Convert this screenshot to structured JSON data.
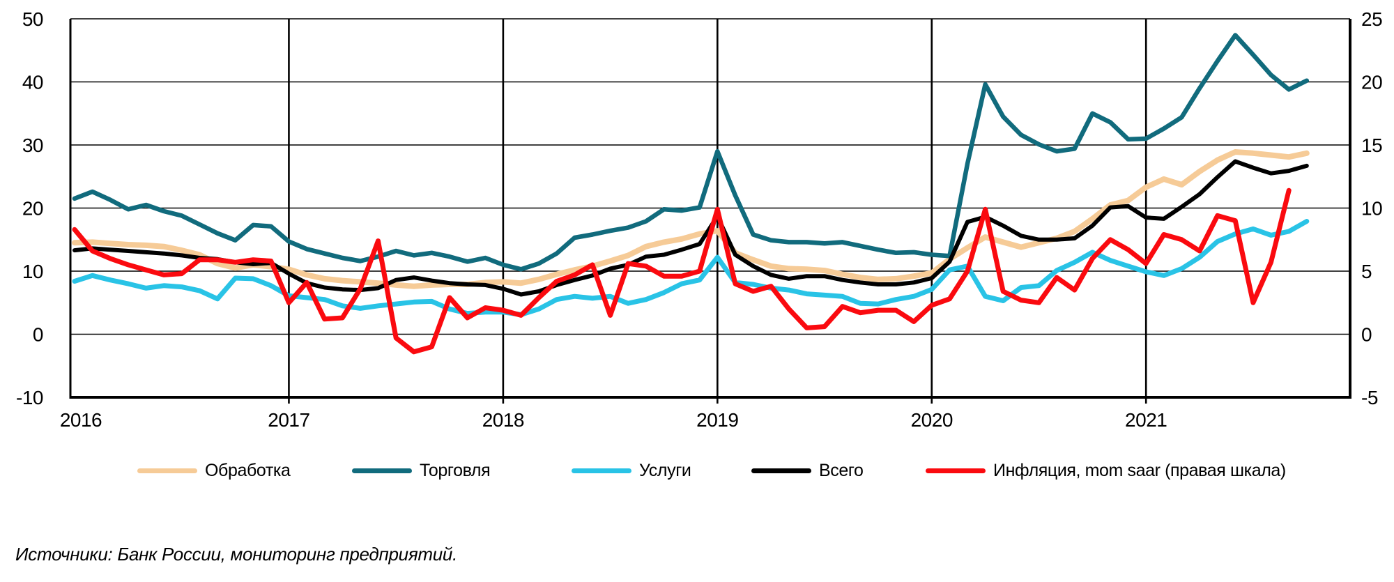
{
  "source_note": "Источники: Банк России, мониторинг предприятий.",
  "chart_data": {
    "type": "line",
    "title": "",
    "x_unit": "month",
    "x_start": "2016-01",
    "x_end_expectations": "2021-10",
    "x_end_inflation": "2021-09",
    "grid": "on",
    "legend_position": "bottom",
    "x_tick_labels": [
      "2016",
      "2017",
      "2018",
      "2019",
      "2020",
      "2021"
    ],
    "left_axis": {
      "min": -10,
      "max": 50,
      "tick_labels": [
        "50",
        "40",
        "30",
        "20",
        "10",
        "0",
        "-10"
      ],
      "tick_values": [
        50,
        40,
        30,
        20,
        10,
        0,
        -10
      ]
    },
    "right_axis": {
      "min": -5,
      "max": 25,
      "tick_labels": [
        "25",
        "20",
        "15",
        "10",
        "5",
        "0",
        "-5"
      ],
      "tick_values": [
        25,
        20,
        15,
        10,
        5,
        0,
        -5
      ]
    },
    "series": [
      {
        "key": "manufacturing",
        "name": "Обработка",
        "color": "#F6CB97",
        "axis": "left",
        "values": [
          14.5,
          14.6,
          14.4,
          14.2,
          14.1,
          13.9,
          13.3,
          12.6,
          11.2,
          10.5,
          11.0,
          10.7,
          10.3,
          9.4,
          8.8,
          8.5,
          8.3,
          8.1,
          7.8,
          7.6,
          7.8,
          7.9,
          7.9,
          8.2,
          8.3,
          8.1,
          8.7,
          9.5,
          10.2,
          10.8,
          11.6,
          12.5,
          13.9,
          14.6,
          15.1,
          15.9,
          16.4,
          12.9,
          11.8,
          10.8,
          10.4,
          10.3,
          10.1,
          9.5,
          9.0,
          8.7,
          8.8,
          9.2,
          9.7,
          11.9,
          13.7,
          15.4,
          14.6,
          13.8,
          14.5,
          15.2,
          16.3,
          18.3,
          20.5,
          21.2,
          23.3,
          24.6,
          23.7,
          25.8,
          27.6,
          28.9,
          28.7,
          28.4,
          28.1,
          28.7
        ]
      },
      {
        "key": "trade",
        "name": "Торговля",
        "color": "#116B7D",
        "axis": "left",
        "values": [
          21.5,
          22.6,
          21.3,
          19.8,
          20.5,
          19.5,
          18.8,
          17.4,
          16.0,
          14.9,
          17.3,
          17.1,
          14.7,
          13.5,
          12.8,
          12.1,
          11.6,
          12.3,
          13.2,
          12.5,
          12.9,
          12.3,
          11.5,
          12.1,
          11.0,
          10.3,
          11.2,
          12.8,
          15.3,
          15.8,
          16.4,
          16.9,
          17.9,
          19.8,
          19.6,
          20.1,
          29.0,
          22.0,
          15.8,
          14.9,
          14.6,
          14.6,
          14.4,
          14.6,
          14.0,
          13.4,
          12.9,
          13.0,
          12.6,
          12.4,
          27.0,
          39.6,
          34.5,
          31.6,
          30.1,
          29.0,
          29.4,
          35.0,
          33.6,
          30.9,
          31.0,
          32.6,
          34.4,
          39.0,
          43.3,
          47.4,
          44.3,
          41.1,
          38.8,
          40.2
        ]
      },
      {
        "key": "services",
        "name": "Услуги",
        "color": "#29C3E6",
        "axis": "left",
        "values": [
          8.4,
          9.3,
          8.6,
          8.0,
          7.3,
          7.7,
          7.5,
          6.9,
          5.6,
          8.9,
          8.8,
          7.7,
          6.1,
          5.8,
          5.5,
          4.5,
          4.1,
          4.5,
          4.8,
          5.1,
          5.2,
          4.0,
          3.3,
          3.5,
          3.5,
          3.1,
          4.0,
          5.5,
          6.0,
          5.7,
          6.0,
          4.9,
          5.5,
          6.6,
          8.0,
          8.6,
          12.2,
          8.2,
          7.9,
          7.3,
          7.0,
          6.4,
          6.2,
          6.0,
          4.9,
          4.8,
          5.5,
          6.0,
          7.1,
          10.2,
          10.8,
          6.0,
          5.3,
          7.4,
          7.7,
          10.1,
          11.4,
          13.0,
          11.7,
          10.8,
          9.9,
          9.3,
          10.4,
          12.2,
          14.7,
          15.9,
          16.7,
          15.7,
          16.3,
          17.9
        ]
      },
      {
        "key": "total",
        "name": "Всего",
        "color": "#000000",
        "axis": "left",
        "values": [
          13.3,
          13.6,
          13.4,
          13.2,
          13.0,
          12.8,
          12.5,
          12.1,
          11.9,
          11.4,
          11.1,
          11.3,
          9.6,
          8.1,
          7.4,
          7.1,
          7.0,
          7.3,
          8.6,
          9.0,
          8.5,
          8.1,
          7.9,
          7.8,
          7.2,
          6.3,
          6.8,
          7.8,
          8.6,
          9.3,
          10.4,
          11.0,
          12.3,
          12.6,
          13.4,
          14.3,
          18.7,
          12.6,
          10.8,
          9.4,
          8.8,
          9.2,
          9.2,
          8.6,
          8.2,
          7.9,
          7.9,
          8.2,
          8.9,
          11.5,
          17.8,
          18.6,
          17.2,
          15.6,
          15.0,
          15.0,
          15.2,
          17.2,
          20.1,
          20.3,
          18.5,
          18.3,
          20.2,
          22.2,
          24.9,
          27.4,
          26.4,
          25.5,
          25.9,
          26.7
        ]
      },
      {
        "key": "inflation",
        "name": "Инфляция, mom saar (правая шкала)",
        "color": "#FA0A0F",
        "axis": "right",
        "values": [
          8.3,
          6.6,
          6.0,
          5.5,
          5.1,
          4.7,
          4.8,
          5.9,
          5.9,
          5.7,
          5.9,
          5.8,
          2.5,
          4.1,
          1.2,
          1.3,
          3.6,
          7.4,
          -0.3,
          -1.4,
          -1.0,
          2.9,
          1.3,
          2.1,
          1.9,
          1.5,
          2.9,
          4.2,
          4.7,
          5.5,
          1.5,
          5.6,
          5.4,
          4.6,
          4.6,
          5.0,
          9.9,
          4.0,
          3.4,
          3.8,
          2.0,
          0.5,
          0.6,
          2.2,
          1.7,
          1.9,
          1.9,
          1.0,
          2.3,
          2.8,
          5.0,
          9.9,
          3.4,
          2.7,
          2.5,
          4.5,
          3.5,
          6.0,
          7.5,
          6.7,
          5.6,
          7.9,
          7.5,
          6.6,
          9.4,
          9.0,
          2.5,
          5.7,
          11.4
        ]
      }
    ]
  }
}
